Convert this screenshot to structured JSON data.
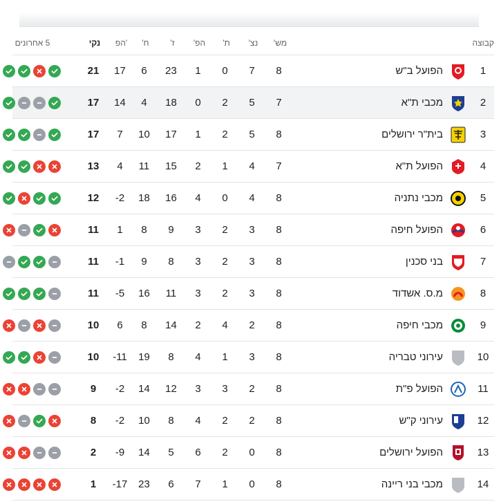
{
  "columns": {
    "team": "קבוצה",
    "played": "מש'",
    "wins": "נצ'",
    "draws": "ת'",
    "losses": "הפ'",
    "gf": "ז'",
    "ga": "ח'",
    "gd": "הפ'",
    "points": "נקי",
    "form": "5 אחרונים"
  },
  "colors": {
    "win": "#34a853",
    "loss": "#ea4335",
    "draw": "#9aa0a6",
    "highlight": "#f1f3f4"
  },
  "rows": [
    {
      "rank": "1",
      "team": "הפועל ב\"ש",
      "played": "8",
      "wins": "7",
      "draws": "0",
      "losses": "1",
      "gf": "23",
      "ga": "6",
      "gd": "17",
      "points": "21",
      "form": [
        "W",
        "W",
        "W",
        "L",
        "W"
      ],
      "logo": "hapoel-beersheva-logo"
    },
    {
      "rank": "2",
      "team": "מכבי ת\"א",
      "played": "7",
      "wins": "5",
      "draws": "2",
      "losses": "0",
      "gf": "18",
      "ga": "4",
      "gd": "14",
      "points": "17",
      "form": [
        "W",
        "W",
        "D",
        "D",
        "W"
      ],
      "logo": "maccabi-tel-aviv-logo",
      "highlight": true
    },
    {
      "rank": "3",
      "team": "בית\"ר ירושלים",
      "played": "8",
      "wins": "5",
      "draws": "2",
      "losses": "1",
      "gf": "17",
      "ga": "10",
      "gd": "7",
      "points": "17",
      "form": [
        "W",
        "W",
        "W",
        "D",
        "W"
      ],
      "logo": "beitar-jerusalem-logo"
    },
    {
      "rank": "4",
      "team": "הפועל ת\"א",
      "played": "7",
      "wins": "4",
      "draws": "1",
      "losses": "2",
      "gf": "15",
      "ga": "11",
      "gd": "4",
      "points": "13",
      "form": [
        "W",
        "W",
        "W",
        "L",
        "L"
      ],
      "logo": "hapoel-tel-aviv-logo"
    },
    {
      "rank": "5",
      "team": "מכבי נתניה",
      "played": "8",
      "wins": "4",
      "draws": "0",
      "losses": "4",
      "gf": "16",
      "ga": "18",
      "gd": "-2",
      "points": "12",
      "form": [
        "W",
        "W",
        "L",
        "W",
        "W"
      ],
      "logo": "maccabi-netanya-logo"
    },
    {
      "rank": "6",
      "team": "הפועל חיפה",
      "played": "8",
      "wins": "3",
      "draws": "2",
      "losses": "3",
      "gf": "9",
      "ga": "8",
      "gd": "1",
      "points": "11",
      "form": [
        "D",
        "L",
        "D",
        "W",
        "L"
      ],
      "logo": "hapoel-haifa-logo"
    },
    {
      "rank": "7",
      "team": "בני סכנין",
      "played": "8",
      "wins": "3",
      "draws": "2",
      "losses": "3",
      "gf": "8",
      "ga": "9",
      "gd": "-1",
      "points": "11",
      "form": [
        "L",
        "D",
        "W",
        "W",
        "D"
      ],
      "logo": "bnei-sakhnin-logo"
    },
    {
      "rank": "8",
      "team": "מ.ס. אשדוד",
      "played": "8",
      "wins": "3",
      "draws": "2",
      "losses": "3",
      "gf": "11",
      "ga": "16",
      "gd": "-5",
      "points": "11",
      "form": [
        "L",
        "W",
        "W",
        "W",
        "D"
      ],
      "logo": "ms-ashdod-logo"
    },
    {
      "rank": "9",
      "team": "מכבי חיפה",
      "played": "8",
      "wins": "2",
      "draws": "4",
      "losses": "2",
      "gf": "14",
      "ga": "8",
      "gd": "6",
      "points": "10",
      "form": [
        "D",
        "L",
        "D",
        "L",
        "D"
      ],
      "logo": "maccabi-haifa-logo"
    },
    {
      "rank": "10",
      "team": "עירוני טבריה",
      "played": "8",
      "wins": "3",
      "draws": "1",
      "losses": "4",
      "gf": "8",
      "ga": "19",
      "gd": "-11",
      "points": "10",
      "form": [
        "L",
        "W",
        "W",
        "L",
        "D"
      ],
      "logo": "ironi-tiberias-logo"
    },
    {
      "rank": "11",
      "team": "הפועל פ\"ת",
      "played": "8",
      "wins": "2",
      "draws": "3",
      "losses": "3",
      "gf": "12",
      "ga": "14",
      "gd": "-2",
      "points": "9",
      "form": [
        "W",
        "L",
        "L",
        "D",
        "D"
      ],
      "logo": "hapoel-petah-tikva-logo"
    },
    {
      "rank": "12",
      "team": "עירוני ק\"ש",
      "played": "8",
      "wins": "2",
      "draws": "2",
      "losses": "4",
      "gf": "8",
      "ga": "10",
      "gd": "-2",
      "points": "8",
      "form": [
        "L",
        "L",
        "D",
        "W",
        "L"
      ],
      "logo": "ironi-kiryat-shmona-logo"
    },
    {
      "rank": "13",
      "team": "הפועל ירושלים",
      "played": "8",
      "wins": "0",
      "draws": "2",
      "losses": "6",
      "gf": "5",
      "ga": "14",
      "gd": "-9",
      "points": "2",
      "form": [
        "L",
        "L",
        "L",
        "D",
        "D"
      ],
      "logo": "hapoel-jerusalem-logo"
    },
    {
      "rank": "14",
      "team": "מכבי בני ריינה",
      "played": "8",
      "wins": "0",
      "draws": "1",
      "losses": "7",
      "gf": "6",
      "ga": "23",
      "gd": "-17",
      "points": "1",
      "form": [
        "L",
        "L",
        "L",
        "L",
        "L"
      ],
      "logo": "maccabi-bnei-reineh-logo"
    }
  ]
}
